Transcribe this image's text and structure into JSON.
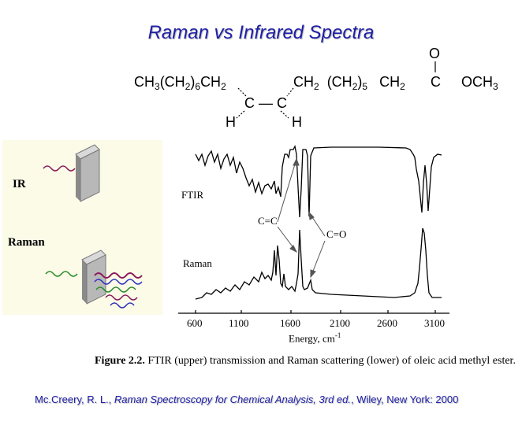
{
  "title": "Raman vs Infrared Spectra",
  "molecule": {
    "chain_left": "CH3(CH2)6CH2",
    "chain_right": "CH2 (CH2)5 CH2",
    "carbonyl_O": "O",
    "carbonyl_C": "C",
    "ester": "OCH3",
    "alkene": "C — C",
    "h_left": "H",
    "h_right": "H"
  },
  "diagram": {
    "ir_label": "IR",
    "raman_label": "Raman"
  },
  "spectrum": {
    "ftir_label": "FTIR",
    "raman_label": "Raman",
    "cc_label": "C=C",
    "co_label": "C=O",
    "x_ticks": [
      "600",
      "1100",
      "1600",
      "2100",
      "2600",
      "3100"
    ],
    "x_label": "Energy, cm-1"
  },
  "caption": {
    "figure": "Figure 2.2.",
    "text": " FTIR (upper) transmission and Raman scattering (lower) of oleic acid methyl ester."
  },
  "citation": {
    "prefix": "Mc.Creery, R. L., ",
    "book": "Raman Spectroscopy for Chemical Analysis, 3rd ed.",
    "suffix": ", Wiley, New York: 2000"
  },
  "colors": {
    "title": "#1e1ea8",
    "panel": "#fbfbe8",
    "wave_ir": "#8b1a5a",
    "wave_raman_in": "#2a8a2a",
    "wave_raman_out1": "#8b1a5a",
    "wave_raman_out2": "#3030c0"
  }
}
